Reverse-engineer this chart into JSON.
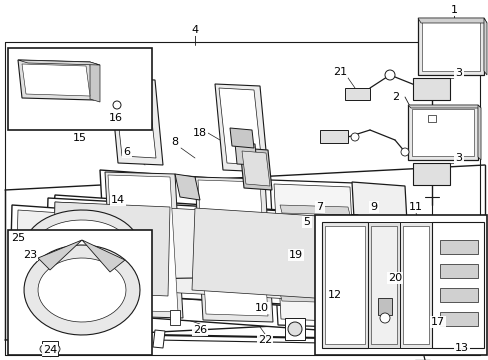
{
  "background_color": "#ffffff",
  "line_color": "#1a1a1a",
  "font_size": 8,
  "fig_width": 4.89,
  "fig_height": 3.6,
  "dpi": 100
}
